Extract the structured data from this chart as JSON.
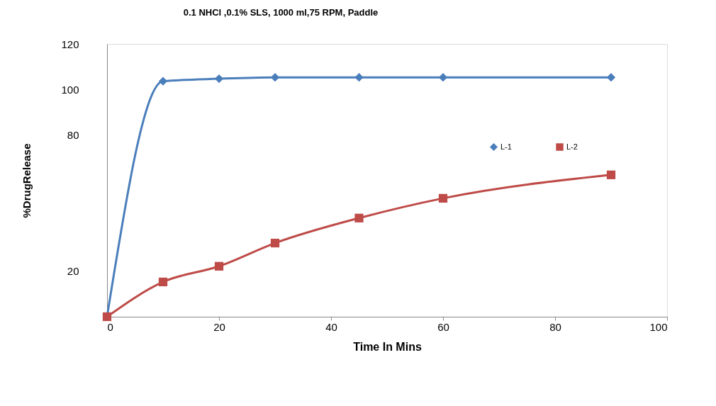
{
  "chart_data": {
    "type": "line",
    "title": "0.1 NHCl ,0.1% SLS, 1000 ml,75 RPM, Paddle",
    "xlabel": "Time In Mins",
    "ylabel": "%DrugRelease",
    "x": [
      0,
      10,
      20,
      30,
      45,
      60,
      90
    ],
    "series": [
      {
        "name": "L-1",
        "color": "#4a7ebb",
        "marker": "diamond",
        "values": [
          0,
          103.6,
          104.7,
          105.3,
          105.3,
          105.3,
          105.3
        ]
      },
      {
        "name": "L-2",
        "color": "#be4b48",
        "marker": "square",
        "values": [
          0,
          15.3,
          22.2,
          32.4,
          43.4,
          52.1,
          62.4
        ]
      }
    ],
    "xlim": [
      0,
      100
    ],
    "xticks": [
      0,
      20,
      40,
      60,
      80,
      100
    ],
    "ylim": [
      0,
      120
    ],
    "yticks": [
      20,
      80,
      100,
      120
    ],
    "grid": false,
    "legend": "right",
    "line_style": "solid"
  }
}
